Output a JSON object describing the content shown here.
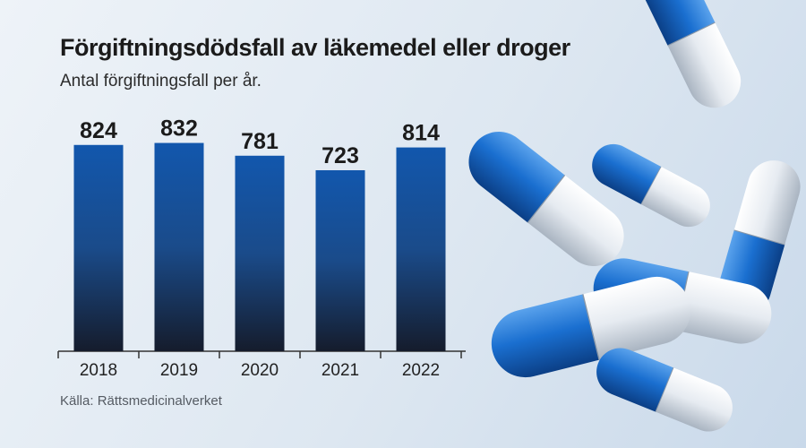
{
  "chart_data": {
    "type": "bar",
    "title": "Förgiftningsdödsfall av läkemedel eller droger",
    "subtitle": "Antal förgiftningsfall per år.",
    "categories": [
      "2018",
      "2019",
      "2020",
      "2021",
      "2022"
    ],
    "values": [
      824,
      832,
      781,
      723,
      814
    ],
    "xlabel": "",
    "ylabel": "",
    "ylim": [
      0,
      880
    ],
    "grid": false,
    "source": "Källa: Rättsmedicinalverket"
  },
  "colors": {
    "bar_top": "#1257ad",
    "bar_bottom": "#151c2c",
    "pill_blue": "#1a6fd0",
    "pill_white": "#eef2f6"
  },
  "decoration": {
    "image": "blue-white-capsules"
  }
}
